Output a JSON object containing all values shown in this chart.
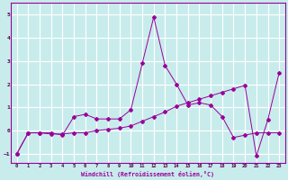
{
  "xlabel": "Windchill (Refroidissement éolien,°C)",
  "ylabel": "",
  "background_color": "#c8ecec",
  "grid_color": "#ffffff",
  "line_color": "#990099",
  "xlim": [
    -0.5,
    23.5
  ],
  "ylim": [
    -1.4,
    5.5
  ],
  "xticks": [
    0,
    1,
    2,
    3,
    4,
    5,
    6,
    7,
    8,
    9,
    10,
    11,
    12,
    13,
    14,
    15,
    16,
    17,
    18,
    19,
    20,
    21,
    22,
    23
  ],
  "yticks": [
    -1,
    0,
    1,
    2,
    3,
    4,
    5
  ],
  "line1_x": [
    0,
    1,
    2,
    3,
    4,
    5,
    6,
    7,
    8,
    9,
    10,
    11,
    12,
    13,
    14,
    15,
    16,
    17,
    18,
    19,
    20,
    21,
    22,
    23
  ],
  "line1_y": [
    -1.0,
    -0.1,
    -0.1,
    -0.1,
    -0.2,
    0.6,
    0.7,
    0.5,
    0.5,
    0.5,
    0.9,
    2.9,
    4.9,
    2.8,
    2.0,
    1.1,
    1.2,
    1.1,
    0.6,
    -0.3,
    -0.2,
    -0.1,
    -0.1,
    -0.1
  ],
  "line2_x": [
    0,
    1,
    2,
    3,
    4,
    5,
    6,
    7,
    8,
    9,
    10,
    11,
    12,
    13,
    14,
    15,
    16,
    17,
    18,
    19,
    20,
    21,
    22,
    23
  ],
  "line2_y": [
    -1.0,
    -0.1,
    -0.1,
    -0.15,
    -0.15,
    -0.1,
    -0.1,
    0.0,
    0.05,
    0.1,
    0.2,
    0.4,
    0.6,
    0.8,
    1.05,
    1.2,
    1.35,
    1.5,
    1.65,
    1.8,
    1.95,
    -1.1,
    0.45,
    2.5
  ]
}
